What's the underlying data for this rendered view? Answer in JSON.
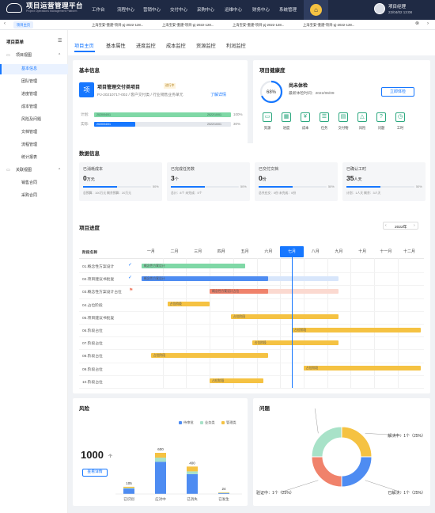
{
  "app": {
    "title": "项目运营管理平台",
    "subtitle": "Project Operations Management Platform"
  },
  "nav": [
    "工作台",
    "流程中心",
    "营销中心",
    "交付中心",
    "采购中心",
    "运维中心",
    "财务中心",
    "系统管理"
  ],
  "user": {
    "name": "项目经理",
    "time": "22/04/02 13:08"
  },
  "tabs": [
    "项目主页",
    "上海宝安\"重建\"项目-pj-2022-128...",
    "上海宝安\"重建\"项目-pj-2022-128...",
    "上海宝安\"重建\"项目-pj-2022-128...",
    "上海宝安\"重建\"项目-pj-2022-128..."
  ],
  "sidebar": {
    "title": "项目菜单",
    "groups": [
      {
        "label": "项目视图",
        "items": [
          "基本信息",
          "团队管理",
          "进度管理",
          "成本管理",
          "风险及问题",
          "文档管理",
          "流程管理",
          "统计报表"
        ]
      },
      {
        "label": "关联视图",
        "items": [
          "销售合同",
          "采购合同"
        ]
      }
    ]
  },
  "subtabs": [
    "项目主页",
    "基本属性",
    "进度监控",
    "成本监控",
    "资源监控",
    "利润监控"
  ],
  "basic": {
    "title": "基本信息",
    "icon_char": "项",
    "project_name": "项目管理交付类项目",
    "status": "进行中",
    "meta": "PJ-20210717-002 / 客户交付类 / 行业销售业务单元",
    "link": "了解详情",
    "plan": {
      "label": "计划:",
      "start": "2020/04/01",
      "end": "2022/10/01",
      "pct": "100%",
      "value": 1.0
    },
    "actual": {
      "label": "实际:",
      "start": "2020/04/01",
      "end": "2022/10/01",
      "pct": "30%",
      "value": 0.3
    }
  },
  "health": {
    "title": "项目健康度",
    "pct": "68%",
    "value": 0.68,
    "status": "尚未体检",
    "last": "最新体检时间：2022/06/09",
    "button": "立即体检",
    "items": [
      "资源",
      "进度",
      "成本",
      "任务",
      "交付物",
      "风险",
      "问题",
      "工时"
    ]
  },
  "data_info": {
    "title": "数据信息",
    "metrics": [
      {
        "title": "已消耗成本",
        "value": "0",
        "unit": "万元",
        "pct": "50%",
        "fill": 0.5,
        "foot": "总预算：100万元 剩余预算：20万元"
      },
      {
        "title": "已完成任务数",
        "value": "3",
        "unit": "个",
        "pct": "50%",
        "fill": 0.5,
        "foot": "总计：8个 未完成：5个"
      },
      {
        "title": "已交付文档",
        "value": "0",
        "unit": "份",
        "pct": "50%",
        "fill": 0.5,
        "foot": "总共应交：0份 未完成：0份"
      },
      {
        "title": "已确认工时",
        "value": "35",
        "unit": "人天",
        "pct": "50%",
        "fill": 0.5,
        "foot": "计划：1人天 剩余：3人天"
      }
    ]
  },
  "progress": {
    "title": "项目进度",
    "year": "2022年",
    "stage_header": "阶段名称",
    "months": [
      "一月",
      "二月",
      "三月",
      "四月",
      "五月",
      "六月",
      "七月",
      "八月",
      "九月",
      "十月",
      "十一月",
      "十二月"
    ],
    "current_month": 6,
    "rows": [
      {
        "name": "01.概念性方案设计",
        "done": true,
        "flag": false,
        "bars": [
          {
            "s": 0.1,
            "e": 4.5,
            "color": "#7fd8a6",
            "label": "概念性方案设计"
          }
        ]
      },
      {
        "name": "02.项目建议书批复",
        "done": true,
        "flag": false,
        "bars": [
          {
            "s": 0.1,
            "e": 8.5,
            "color": "#d8e6fb",
            "label": ""
          },
          {
            "s": 0.1,
            "e": 5.5,
            "color": "#4e8cf2",
            "label": "概念性方案设计"
          }
        ]
      },
      {
        "name": "03.概念性方案设计占位",
        "done": false,
        "flag": true,
        "bars": [
          {
            "s": 3.0,
            "e": 8.5,
            "color": "#fbd9d0",
            "label": ""
          },
          {
            "s": 3.0,
            "e": 5.5,
            "color": "#f0826b",
            "label": "概念性方案设计占位"
          }
        ]
      },
      {
        "name": "04.占位阶段",
        "done": false,
        "flag": false,
        "bars": [
          {
            "s": 1.2,
            "e": 3.0,
            "color": "#f5c242",
            "label": "占位阶段"
          }
        ]
      },
      {
        "name": "05.项目建议书批复",
        "done": false,
        "flag": false,
        "bars": [
          {
            "s": 3.9,
            "e": 8.5,
            "color": "#f5c242",
            "label": "占位阶段"
          }
        ]
      },
      {
        "name": "06.阶段占位",
        "done": false,
        "flag": false,
        "bars": [
          {
            "s": 6.5,
            "e": 12.0,
            "color": "#f5c242",
            "label": "占位阶段"
          }
        ]
      },
      {
        "name": "07.阶段占位",
        "done": false,
        "flag": false,
        "bars": [
          {
            "s": 4.8,
            "e": 8.5,
            "color": "#f5c242",
            "label": "占位阶段"
          }
        ]
      },
      {
        "name": "08.阶段占位",
        "done": false,
        "flag": false,
        "bars": [
          {
            "s": 0.5,
            "e": 5.5,
            "color": "#f5c242",
            "label": "占位阶段"
          }
        ]
      },
      {
        "name": "09.阶段占位",
        "done": false,
        "flag": false,
        "bars": [
          {
            "s": 7.0,
            "e": 12.0,
            "color": "#f5c242",
            "label": "占位阶段"
          }
        ]
      },
      {
        "name": "10.阶段占位",
        "done": false,
        "flag": false,
        "bars": [
          {
            "s": 3.0,
            "e": 5.3,
            "color": "#f5c242",
            "label": "占位阶段"
          }
        ]
      }
    ]
  },
  "risk": {
    "title": "风险",
    "total": "1000",
    "unit": "个",
    "button": "查看详情",
    "legend": [
      {
        "name": "待审批",
        "color": "#4e8cf2"
      },
      {
        "name": "业务类",
        "color": "#a8e2c8"
      },
      {
        "name": "管理类",
        "color": "#f5c242"
      }
    ]
  },
  "chart_data": [
    {
      "type": "bar",
      "stacked": true,
      "categories": [
        "已识别",
        "应对中",
        "已消失",
        "已发生"
      ],
      "totals": [
        105,
        600,
        400,
        24
      ],
      "series": [
        {
          "name": "待审批",
          "values": [
            80,
            470,
            290,
            13
          ]
        },
        {
          "name": "业务类",
          "values": [
            10,
            60,
            40,
            4
          ]
        },
        {
          "name": "管理类",
          "values": [
            15,
            70,
            70,
            7
          ]
        }
      ]
    },
    {
      "type": "pie",
      "donut": true,
      "title": "",
      "slices": [
        {
          "name": "已发现",
          "label": "已发现：1个（25%）",
          "value": 25,
          "color": "#a8e2c8"
        },
        {
          "name": "解决中",
          "label": "解决中：1个（25%）",
          "value": 25,
          "color": "#f5c242"
        },
        {
          "name": "已解决",
          "label": "已解决：1个（25%）",
          "value": 25,
          "color": "#4e8cf2"
        },
        {
          "name": "验证中",
          "label": "验证中：1个（25%）",
          "value": 25,
          "color": "#f0826b"
        }
      ]
    }
  ],
  "issues": {
    "title": "问题"
  }
}
